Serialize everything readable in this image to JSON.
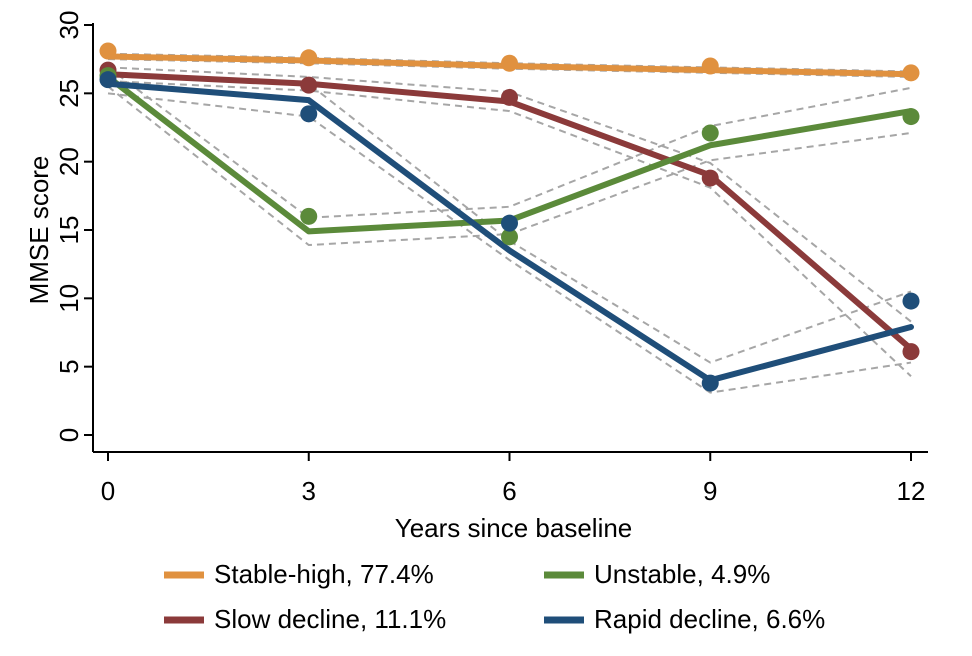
{
  "chart_data": {
    "type": "line",
    "xlabel": "Years since baseline",
    "ylabel": "MMSE score",
    "x": [
      0,
      3,
      6,
      9,
      12
    ],
    "xticks": [
      "0",
      "3",
      "6",
      "9",
      "12"
    ],
    "yticks": [
      "0",
      "5",
      "10",
      "15",
      "20",
      "25",
      "30"
    ],
    "xlim": [
      0,
      12
    ],
    "ylim": [
      0,
      30
    ],
    "grid": false,
    "legend_position": "bottom",
    "series": [
      {
        "name": "Stable-high, 77.4%",
        "color": "#e0913f",
        "observed": [
          28.1,
          27.6,
          27.2,
          27.0,
          26.5
        ],
        "fitted": [
          27.7,
          27.4,
          27.0,
          26.7,
          26.4
        ],
        "ci_lower": [
          27.5,
          27.2,
          26.8,
          26.5,
          26.2
        ],
        "ci_upper": [
          27.9,
          27.6,
          27.2,
          26.9,
          26.6
        ]
      },
      {
        "name": "Slow decline, 11.1%",
        "color": "#8b3a3a",
        "observed": [
          26.7,
          25.6,
          24.7,
          18.8,
          6.1
        ],
        "fitted": [
          26.4,
          25.7,
          24.4,
          19.0,
          6.3
        ],
        "ci_lower": [
          25.9,
          25.2,
          23.7,
          18.1,
          4.3
        ],
        "ci_upper": [
          26.9,
          26.2,
          25.1,
          19.9,
          8.3
        ]
      },
      {
        "name": "Unstable, 4.9%",
        "color": "#5b8a3a",
        "observed": [
          26.3,
          16.0,
          14.5,
          22.1,
          23.3
        ],
        "fitted": [
          26.2,
          14.9,
          15.7,
          21.2,
          23.7
        ],
        "ci_lower": [
          25.5,
          13.9,
          14.7,
          20.1,
          22.1
        ],
        "ci_upper": [
          26.9,
          15.9,
          16.7,
          22.6,
          25.4
        ]
      },
      {
        "name": "Rapid decline, 6.6%",
        "color": "#1f4e79",
        "observed": [
          26.0,
          23.5,
          15.5,
          3.8,
          9.8
        ],
        "fitted": [
          25.7,
          24.5,
          13.5,
          4.0,
          7.9
        ],
        "ci_lower": [
          25.0,
          23.3,
          12.8,
          3.1,
          5.3
        ],
        "ci_upper": [
          26.4,
          25.7,
          14.2,
          5.3,
          10.5
        ]
      }
    ]
  }
}
